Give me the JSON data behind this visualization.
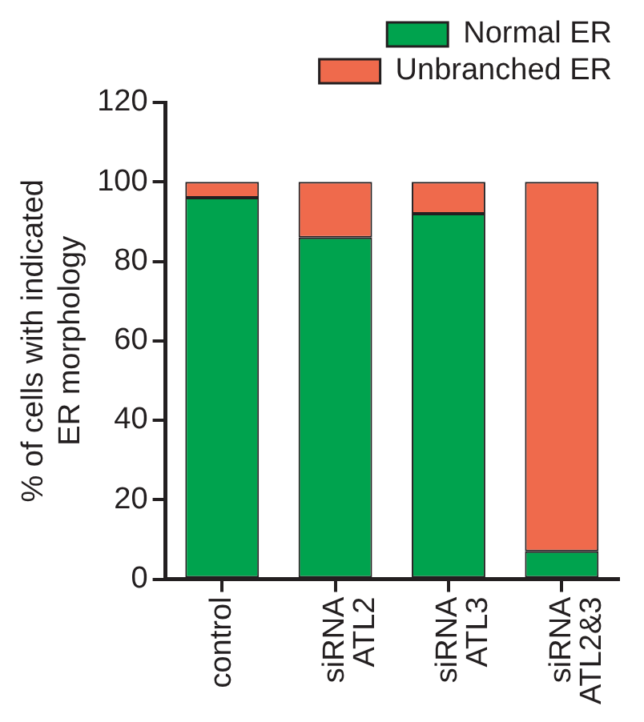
{
  "chart_data": {
    "type": "bar",
    "ylabel": "% of cells with indicated ER morphology",
    "categories": [
      "control",
      "siRNA ATL2",
      "siRNA ATL3",
      "siRNA ATL2&3"
    ],
    "series": [
      {
        "name": "Normal ER",
        "color": "#00a34e",
        "values": [
          96,
          86,
          92,
          7
        ]
      },
      {
        "name": "Unbranched ER",
        "color": "#ef6a4c",
        "values": [
          4,
          14,
          8,
          93
        ]
      }
    ],
    "stacked": true,
    "ylim": [
      0,
      120
    ],
    "yticks": [
      0,
      20,
      40,
      60,
      80,
      100,
      120
    ],
    "grid": false,
    "legend": "top right"
  }
}
